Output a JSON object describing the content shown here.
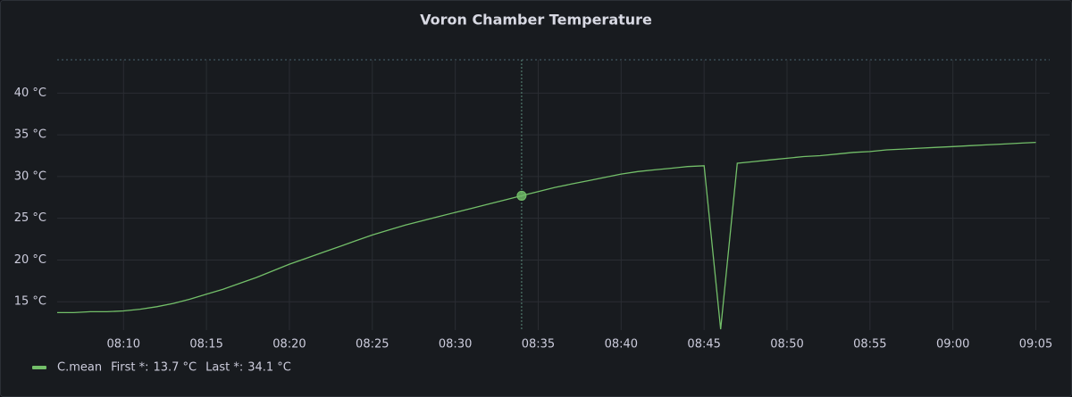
{
  "chart_data": {
    "type": "line",
    "title": "Voron Chamber Temperature",
    "x": [
      "08:06",
      "08:07",
      "08:08",
      "08:09",
      "08:10",
      "08:11",
      "08:12",
      "08:13",
      "08:14",
      "08:15",
      "08:16",
      "08:17",
      "08:18",
      "08:19",
      "08:20",
      "08:21",
      "08:22",
      "08:23",
      "08:24",
      "08:25",
      "08:26",
      "08:27",
      "08:28",
      "08:29",
      "08:30",
      "08:31",
      "08:32",
      "08:33",
      "08:34",
      "08:35",
      "08:36",
      "08:37",
      "08:38",
      "08:39",
      "08:40",
      "08:41",
      "08:42",
      "08:43",
      "08:44",
      "08:45",
      "08:46",
      "08:47",
      "08:48",
      "08:49",
      "08:50",
      "08:51",
      "08:52",
      "08:53",
      "08:54",
      "08:55",
      "08:56",
      "08:57",
      "08:58",
      "08:59",
      "09:00",
      "09:01",
      "09:02",
      "09:03",
      "09:04",
      "09:05"
    ],
    "series": [
      {
        "name": "C.mean",
        "color": "#73bf69",
        "values": [
          13.7,
          13.7,
          13.8,
          13.8,
          13.9,
          14.1,
          14.4,
          14.8,
          15.3,
          15.9,
          16.5,
          17.2,
          17.9,
          18.7,
          19.5,
          20.2,
          20.9,
          21.6,
          22.3,
          23.0,
          23.6,
          24.2,
          24.7,
          25.2,
          25.7,
          26.2,
          26.7,
          27.2,
          27.7,
          28.2,
          28.7,
          29.1,
          29.5,
          29.9,
          30.3,
          30.6,
          30.8,
          31.0,
          31.2,
          31.3,
          11.7,
          31.6,
          31.8,
          32.0,
          32.2,
          32.4,
          32.5,
          32.7,
          32.9,
          33.0,
          33.2,
          33.3,
          33.4,
          33.5,
          33.6,
          33.7,
          33.8,
          33.9,
          34.0,
          34.1
        ]
      }
    ],
    "xlim": [
      "08:06",
      "09:05:50"
    ],
    "xticks": [
      "08:10",
      "08:15",
      "08:20",
      "08:25",
      "08:30",
      "08:35",
      "08:40",
      "08:45",
      "08:50",
      "08:55",
      "09:00",
      "09:05"
    ],
    "ylim": [
      11.6,
      44
    ],
    "yticks": [
      {
        "value": 15,
        "label": "15 °C"
      },
      {
        "value": 20,
        "label": "20 °C"
      },
      {
        "value": 25,
        "label": "25 °C"
      },
      {
        "value": 30,
        "label": "30 °C"
      },
      {
        "value": 35,
        "label": "35 °C"
      },
      {
        "value": 40,
        "label": "40 °C"
      }
    ],
    "grid": true,
    "hover_x": "08:34",
    "legend_stats": [
      {
        "name": "First *:",
        "value": 13.7,
        "label": "13.7 °C"
      },
      {
        "name": "Last *:",
        "value": 34.1,
        "label": "34.1 °C"
      }
    ]
  }
}
